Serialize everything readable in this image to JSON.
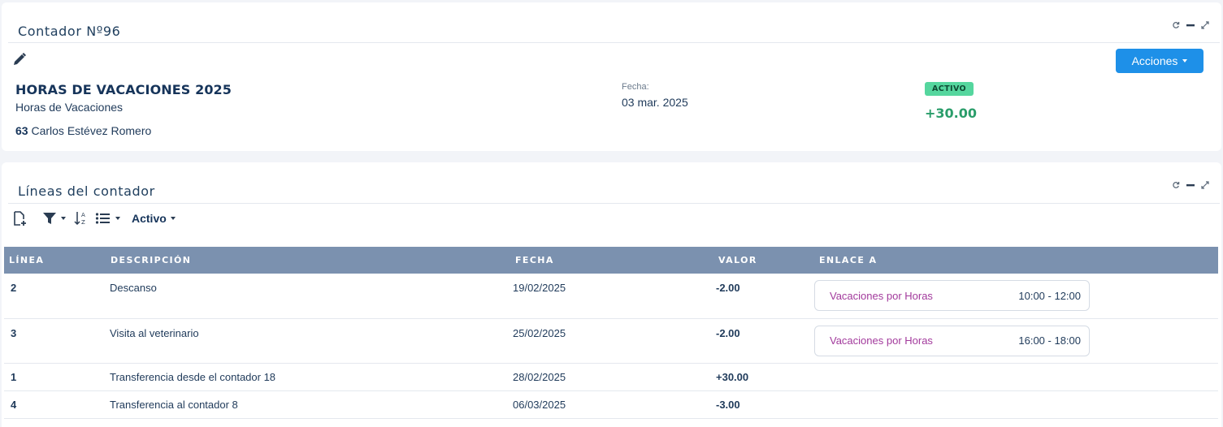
{
  "header_panel": {
    "title": "Contador Nº96",
    "actions_label": "Acciones",
    "record_title": "HORAS DE VACACIONES 2025",
    "record_subtitle": "Horas de Vacaciones",
    "employee_number": "63",
    "employee_name": "Carlos Estévez Romero",
    "date_label": "Fecha:",
    "date_value": "03 mar. 2025",
    "status_badge": "ACTIVO",
    "total": "+30.00"
  },
  "lines_panel": {
    "title": "Líneas del contador",
    "filter_label": "Activo",
    "columns": [
      "LÍNEA",
      "DESCRIPCIÓN",
      "FECHA",
      "VALOR",
      "ENLACE A"
    ],
    "rows": [
      {
        "line": "2",
        "description": "Descanso",
        "date": "19/02/2025",
        "value": "-2.00",
        "link": {
          "name": "Vacaciones por Horas",
          "time": "10:00 - 12:00"
        }
      },
      {
        "line": "3",
        "description": "Visita al veterinario",
        "date": "25/02/2025",
        "value": "-2.00",
        "link": {
          "name": "Vacaciones por Horas",
          "time": "16:00 - 18:00"
        }
      },
      {
        "line": "1",
        "description": "Transferencia desde el contador 18",
        "date": "28/02/2025",
        "value": "+30.00"
      },
      {
        "line": "4",
        "description": "Transferencia al contador 8",
        "date": "06/03/2025",
        "value": "-3.00"
      }
    ]
  },
  "icons": [
    "refresh-icon",
    "minimize-icon",
    "expand-icon",
    "pencil-icon",
    "new-document-icon",
    "filter-icon",
    "sort-az-icon",
    "list-icon"
  ],
  "colors": {
    "accent": "#1e90e8",
    "positive": "#2a9d6a",
    "negative": "#f06a35",
    "link": "#a23a9c",
    "table_header": "#7b91af",
    "badge": "#55d69e"
  }
}
